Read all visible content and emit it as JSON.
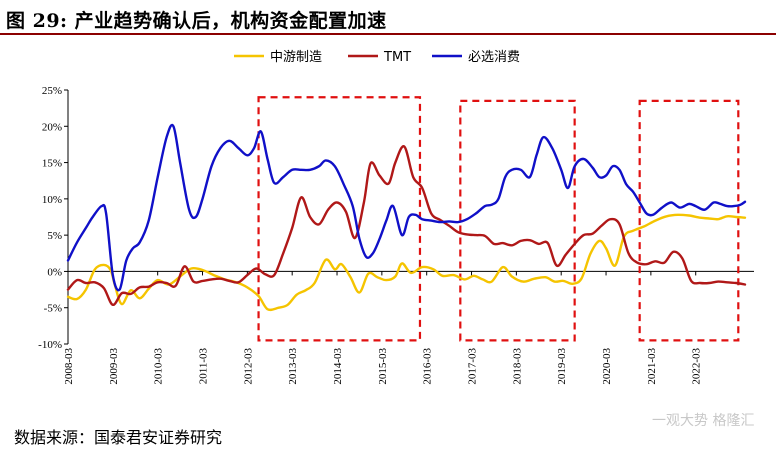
{
  "title": "图 29: 产业趋势确认后，机构资金配置加速",
  "source": "数据来源：国泰君安证券研究",
  "watermark": "一观大势 格隆汇",
  "colors": {
    "midstream": "#f5c400",
    "tmt": "#b01818",
    "consumer": "#1010c8",
    "box": "#e01010"
  },
  "chart_data": {
    "type": "line",
    "ylim": [
      -10,
      25
    ],
    "y_ticks": [
      {
        "value": 25,
        "label": "25%"
      },
      {
        "value": 20,
        "label": "20%"
      },
      {
        "value": 15,
        "label": "15%"
      },
      {
        "value": 10,
        "label": "10%"
      },
      {
        "value": 5,
        "label": "5%"
      },
      {
        "value": 0,
        "label": "0%"
      },
      {
        "value": -5,
        "label": "-5%"
      },
      {
        "value": -10,
        "label": "-10%"
      }
    ],
    "xlim": [
      2008.0,
      2023.3
    ],
    "x_ticks": [
      {
        "value": 2008.0,
        "label": "2008-03"
      },
      {
        "value": 2009.0,
        "label": "2009-03"
      },
      {
        "value": 2010.0,
        "label": "2010-03"
      },
      {
        "value": 2011.0,
        "label": "2011-03"
      },
      {
        "value": 2012.0,
        "label": "2012-03"
      },
      {
        "value": 2013.0,
        "label": "2013-03"
      },
      {
        "value": 2014.0,
        "label": "2014-03"
      },
      {
        "value": 2015.0,
        "label": "2015-03"
      },
      {
        "value": 2016.0,
        "label": "2016-03"
      },
      {
        "value": 2017.0,
        "label": "2017-03"
      },
      {
        "value": 2018.0,
        "label": "2018-03"
      },
      {
        "value": 2019.0,
        "label": "2019-03"
      },
      {
        "value": 2020.0,
        "label": "2020-03"
      },
      {
        "value": 2021.0,
        "label": "2021-03"
      },
      {
        "value": 2022.0,
        "label": "2022-03"
      }
    ],
    "legend_position": "top-center",
    "grid": false,
    "series": [
      {
        "name": "中游制造",
        "color": "#f5c400",
        "points": [
          [
            2008.0,
            -3.5
          ],
          [
            2008.2,
            -3.8
          ],
          [
            2008.4,
            -2.5
          ],
          [
            2008.6,
            0.3
          ],
          [
            2008.8,
            0.9
          ],
          [
            2008.95,
            0.2
          ],
          [
            2009.05,
            -2.0
          ],
          [
            2009.2,
            -4.5
          ],
          [
            2009.4,
            -2.6
          ],
          [
            2009.6,
            -3.7
          ],
          [
            2009.8,
            -2.4
          ],
          [
            2010.0,
            -1.2
          ],
          [
            2010.25,
            -1.8
          ],
          [
            2010.5,
            -0.7
          ],
          [
            2010.75,
            0.4
          ],
          [
            2011.0,
            0.2
          ],
          [
            2011.25,
            -0.5
          ],
          [
            2011.5,
            -1.1
          ],
          [
            2011.75,
            -1.5
          ],
          [
            2012.0,
            -2.2
          ],
          [
            2012.25,
            -3.4
          ],
          [
            2012.45,
            -5.2
          ],
          [
            2012.7,
            -5.0
          ],
          [
            2012.9,
            -4.6
          ],
          [
            2013.1,
            -3.2
          ],
          [
            2013.3,
            -2.6
          ],
          [
            2013.5,
            -1.6
          ],
          [
            2013.75,
            1.6
          ],
          [
            2013.95,
            0.3
          ],
          [
            2014.1,
            1.0
          ],
          [
            2014.3,
            -0.8
          ],
          [
            2014.5,
            -2.9
          ],
          [
            2014.7,
            -0.3
          ],
          [
            2014.9,
            -0.8
          ],
          [
            2015.1,
            -1.2
          ],
          [
            2015.3,
            -0.7
          ],
          [
            2015.45,
            1.1
          ],
          [
            2015.65,
            -0.2
          ],
          [
            2015.9,
            0.6
          ],
          [
            2016.15,
            0.3
          ],
          [
            2016.35,
            -0.6
          ],
          [
            2016.6,
            -0.5
          ],
          [
            2016.85,
            -1.1
          ],
          [
            2017.05,
            -0.6
          ],
          [
            2017.25,
            -1.1
          ],
          [
            2017.45,
            -1.4
          ],
          [
            2017.7,
            0.6
          ],
          [
            2017.9,
            -0.7
          ],
          [
            2018.15,
            -1.4
          ],
          [
            2018.4,
            -1.0
          ],
          [
            2018.65,
            -0.8
          ],
          [
            2018.85,
            -1.4
          ],
          [
            2019.05,
            -1.3
          ],
          [
            2019.25,
            -1.7
          ],
          [
            2019.45,
            -1.0
          ],
          [
            2019.65,
            2.4
          ],
          [
            2019.85,
            4.2
          ],
          [
            2020.0,
            3.2
          ],
          [
            2020.2,
            0.8
          ],
          [
            2020.4,
            4.8
          ],
          [
            2020.6,
            5.6
          ],
          [
            2020.85,
            6.2
          ],
          [
            2021.1,
            7.0
          ],
          [
            2021.35,
            7.6
          ],
          [
            2021.6,
            7.8
          ],
          [
            2021.85,
            7.7
          ],
          [
            2022.1,
            7.4
          ],
          [
            2022.3,
            7.3
          ],
          [
            2022.5,
            7.2
          ],
          [
            2022.7,
            7.6
          ],
          [
            2022.9,
            7.5
          ],
          [
            2023.1,
            7.4
          ]
        ]
      },
      {
        "name": "TMT",
        "color": "#b01818",
        "points": [
          [
            2008.0,
            -2.5
          ],
          [
            2008.2,
            -1.2
          ],
          [
            2008.4,
            -1.6
          ],
          [
            2008.6,
            -1.5
          ],
          [
            2008.8,
            -2.3
          ],
          [
            2009.0,
            -4.6
          ],
          [
            2009.2,
            -3.0
          ],
          [
            2009.4,
            -3.1
          ],
          [
            2009.6,
            -2.2
          ],
          [
            2009.8,
            -2.1
          ],
          [
            2010.0,
            -1.5
          ],
          [
            2010.2,
            -1.6
          ],
          [
            2010.4,
            -2.0
          ],
          [
            2010.6,
            0.7
          ],
          [
            2010.8,
            -1.4
          ],
          [
            2011.0,
            -1.3
          ],
          [
            2011.2,
            -1.1
          ],
          [
            2011.4,
            -1.0
          ],
          [
            2011.6,
            -1.3
          ],
          [
            2011.8,
            -1.5
          ],
          [
            2012.0,
            -0.5
          ],
          [
            2012.2,
            0.4
          ],
          [
            2012.4,
            -0.4
          ],
          [
            2012.6,
            -0.5
          ],
          [
            2012.8,
            2.5
          ],
          [
            2013.0,
            6.0
          ],
          [
            2013.2,
            10.2
          ],
          [
            2013.4,
            7.5
          ],
          [
            2013.6,
            6.5
          ],
          [
            2013.8,
            8.5
          ],
          [
            2014.0,
            9.5
          ],
          [
            2014.2,
            8.2
          ],
          [
            2014.4,
            4.6
          ],
          [
            2014.6,
            9.5
          ],
          [
            2014.75,
            14.9
          ],
          [
            2014.95,
            13.2
          ],
          [
            2015.15,
            12.1
          ],
          [
            2015.3,
            15.0
          ],
          [
            2015.5,
            17.2
          ],
          [
            2015.7,
            13.0
          ],
          [
            2015.9,
            11.5
          ],
          [
            2016.1,
            8.0
          ],
          [
            2016.3,
            7.1
          ],
          [
            2016.5,
            6.3
          ],
          [
            2016.7,
            5.4
          ],
          [
            2016.9,
            5.1
          ],
          [
            2017.1,
            5.0
          ],
          [
            2017.3,
            4.9
          ],
          [
            2017.5,
            3.8
          ],
          [
            2017.7,
            3.9
          ],
          [
            2017.9,
            3.6
          ],
          [
            2018.1,
            4.2
          ],
          [
            2018.3,
            4.3
          ],
          [
            2018.5,
            3.8
          ],
          [
            2018.7,
            3.9
          ],
          [
            2018.9,
            0.8
          ],
          [
            2019.1,
            2.3
          ],
          [
            2019.3,
            3.8
          ],
          [
            2019.5,
            5.0
          ],
          [
            2019.7,
            5.2
          ],
          [
            2019.9,
            6.3
          ],
          [
            2020.1,
            7.2
          ],
          [
            2020.3,
            6.5
          ],
          [
            2020.5,
            2.5
          ],
          [
            2020.7,
            1.2
          ],
          [
            2020.9,
            1.0
          ],
          [
            2021.1,
            1.4
          ],
          [
            2021.3,
            1.2
          ],
          [
            2021.5,
            2.7
          ],
          [
            2021.7,
            1.8
          ],
          [
            2021.9,
            -1.3
          ],
          [
            2022.1,
            -1.6
          ],
          [
            2022.3,
            -1.6
          ],
          [
            2022.5,
            -1.4
          ],
          [
            2022.7,
            -1.5
          ],
          [
            2022.9,
            -1.6
          ],
          [
            2023.1,
            -1.8
          ]
        ]
      },
      {
        "name": "必选消费",
        "color": "#1010c8",
        "points": [
          [
            2008.0,
            1.5
          ],
          [
            2008.2,
            4.0
          ],
          [
            2008.4,
            6.0
          ],
          [
            2008.55,
            7.5
          ],
          [
            2008.75,
            9.0
          ],
          [
            2008.85,
            8.0
          ],
          [
            2009.0,
            -0.5
          ],
          [
            2009.15,
            -2.5
          ],
          [
            2009.3,
            1.5
          ],
          [
            2009.45,
            3.2
          ],
          [
            2009.6,
            4.0
          ],
          [
            2009.8,
            7.0
          ],
          [
            2010.0,
            13.0
          ],
          [
            2010.2,
            18.5
          ],
          [
            2010.35,
            20.0
          ],
          [
            2010.5,
            15.0
          ],
          [
            2010.7,
            8.5
          ],
          [
            2010.85,
            7.5
          ],
          [
            2011.0,
            10.0
          ],
          [
            2011.2,
            14.5
          ],
          [
            2011.4,
            17.0
          ],
          [
            2011.6,
            18.0
          ],
          [
            2011.8,
            17.0
          ],
          [
            2012.0,
            16.0
          ],
          [
            2012.15,
            17.0
          ],
          [
            2012.3,
            19.3
          ],
          [
            2012.45,
            15.5
          ],
          [
            2012.6,
            12.2
          ],
          [
            2012.8,
            13.0
          ],
          [
            2013.0,
            14.0
          ],
          [
            2013.2,
            14.0
          ],
          [
            2013.4,
            14.0
          ],
          [
            2013.6,
            14.5
          ],
          [
            2013.75,
            15.3
          ],
          [
            2013.95,
            14.5
          ],
          [
            2014.15,
            12.0
          ],
          [
            2014.35,
            9.0
          ],
          [
            2014.5,
            4.5
          ],
          [
            2014.65,
            2.0
          ],
          [
            2014.8,
            2.5
          ],
          [
            2014.95,
            4.5
          ],
          [
            2015.1,
            7.0
          ],
          [
            2015.25,
            9.0
          ],
          [
            2015.45,
            5.0
          ],
          [
            2015.6,
            7.5
          ],
          [
            2015.75,
            7.8
          ],
          [
            2015.9,
            7.2
          ],
          [
            2016.1,
            7.0
          ],
          [
            2016.3,
            6.8
          ],
          [
            2016.5,
            6.9
          ],
          [
            2016.7,
            6.8
          ],
          [
            2016.9,
            7.2
          ],
          [
            2017.1,
            8.0
          ],
          [
            2017.3,
            9.0
          ],
          [
            2017.45,
            9.2
          ],
          [
            2017.6,
            10.0
          ],
          [
            2017.75,
            13.0
          ],
          [
            2017.9,
            14.0
          ],
          [
            2018.1,
            14.0
          ],
          [
            2018.3,
            13.0
          ],
          [
            2018.45,
            16.0
          ],
          [
            2018.6,
            18.5
          ],
          [
            2018.8,
            17.0
          ],
          [
            2019.0,
            14.0
          ],
          [
            2019.15,
            11.5
          ],
          [
            2019.3,
            14.5
          ],
          [
            2019.5,
            15.5
          ],
          [
            2019.7,
            14.3
          ],
          [
            2019.85,
            13.0
          ],
          [
            2020.0,
            13.2
          ],
          [
            2020.15,
            14.5
          ],
          [
            2020.3,
            14.0
          ],
          [
            2020.45,
            12.0
          ],
          [
            2020.6,
            11.0
          ],
          [
            2020.75,
            9.5
          ],
          [
            2020.9,
            8.0
          ],
          [
            2021.05,
            7.8
          ],
          [
            2021.25,
            8.8
          ],
          [
            2021.45,
            9.5
          ],
          [
            2021.65,
            8.8
          ],
          [
            2021.85,
            9.3
          ],
          [
            2022.0,
            9.0
          ],
          [
            2022.2,
            8.5
          ],
          [
            2022.4,
            9.5
          ],
          [
            2022.55,
            9.3
          ],
          [
            2022.7,
            9.0
          ],
          [
            2022.85,
            9.0
          ],
          [
            2023.0,
            9.2
          ],
          [
            2023.1,
            9.6
          ]
        ]
      }
    ],
    "boxes": [
      {
        "x_start": 2012.25,
        "x_end": 2015.85,
        "y_top": 24.0,
        "y_bottom": -9.5
      },
      {
        "x_start": 2016.75,
        "x_end": 2019.3,
        "y_top": 23.5,
        "y_bottom": -9.5
      },
      {
        "x_start": 2020.75,
        "x_end": 2022.95,
        "y_top": 23.5,
        "y_bottom": -9.5
      }
    ]
  }
}
